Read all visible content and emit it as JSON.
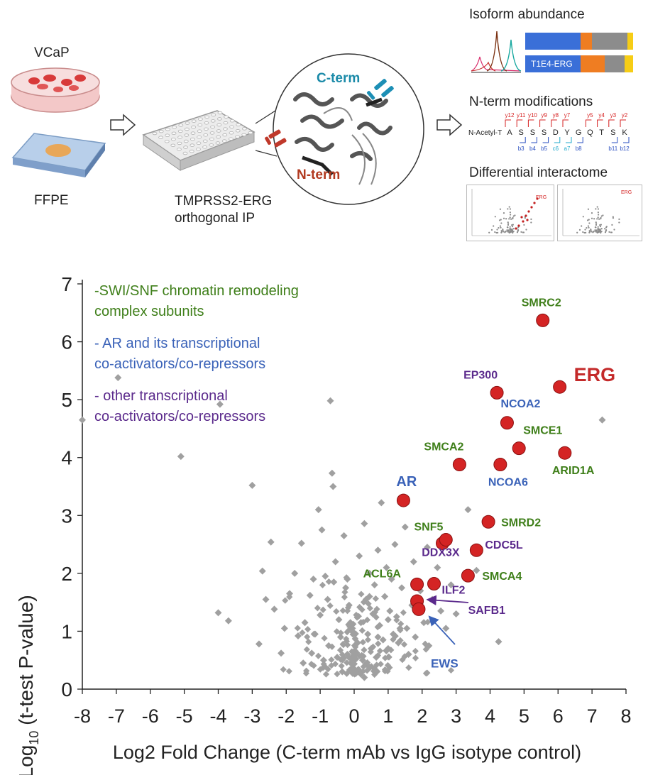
{
  "workflow": {
    "vcap_label": "VCaP",
    "ffpe_label": "FFPE",
    "ip_label_line1": "TMPRSS2-ERG",
    "ip_label_line2": "orthogonal IP",
    "cterm_label": "C-term",
    "nterm_label": "N-term",
    "isoform_title": "Isoform abundance",
    "isoform_bar_label": "T1E4-ERG",
    "nterm_mod_title": "N-term modifications",
    "nterm_prefix": "N-Acetyl-T",
    "sequence": [
      "A",
      "S",
      "S",
      "S",
      "D",
      "Y",
      "G",
      "Q",
      "T",
      "S",
      "K"
    ],
    "y_ions": [
      "y12",
      "y11",
      "y10",
      "y9",
      "y8",
      "y7",
      "y5",
      "y4",
      "y3",
      "y2"
    ],
    "b_ions": [
      "b3",
      "b4",
      "b5",
      "c6",
      "a7",
      "b8",
      "b11",
      "b12"
    ],
    "interactome_title": "Differential interactome",
    "mini_erg_label": "ERG",
    "colors": {
      "bar_blue": "#3a6fd8",
      "bar_orange": "#ef7d22",
      "bar_gray": "#8c8c8c",
      "bar_yellow": "#f6cd16",
      "y_ion_red": "#d62020",
      "b_ion_blue": "#2a4fc0",
      "ca_cyan": "#22aacc"
    }
  },
  "chart_data": {
    "type": "scatter",
    "title": "",
    "xlabel": "Log2 Fold Change (C-term mAb vs IgG isotype control)",
    "ylabel_prefix": "-Log",
    "ylabel_sub": "10",
    "ylabel_suffix": " (t-test P-value)",
    "xlim": [
      -8,
      8
    ],
    "ylim": [
      0,
      7
    ],
    "xticks": [
      "-8",
      "-7",
      "-6",
      "-5",
      "-4",
      "-3",
      "-2",
      "-1",
      "0",
      "1",
      "2",
      "3",
      "4",
      "5",
      "6",
      "7",
      "8"
    ],
    "yticks": [
      "0",
      "1",
      "2",
      "3",
      "4",
      "5",
      "6",
      "7"
    ],
    "legend": [
      {
        "line1": "-SWI/SNF chromatin remodeling",
        "line2": "complex subunits",
        "color": "#3f7f1a"
      },
      {
        "line1": "- AR and its transcriptional",
        "line2": "co-activators/co-repressors",
        "color": "#3a62b8"
      },
      {
        "line1": "- other transcriptional",
        "line2": "co-activators/co-repressors",
        "color": "#5b2a8c"
      }
    ],
    "colors": {
      "background_points": "#a0a0a0",
      "highlight_fill": "#d42424",
      "highlight_stroke": "#8a1010",
      "swisnf": "#3f7f1a",
      "ar": "#3a62b8",
      "other": "#5b2a8c",
      "erg": "#c42a2a"
    },
    "highlighted": [
      {
        "label": "SMRC2",
        "x": 5.55,
        "y": 6.37,
        "group": "swisnf"
      },
      {
        "label": "ERG",
        "x": 6.05,
        "y": 5.22,
        "group": "erg"
      },
      {
        "label": "EP300",
        "x": 4.2,
        "y": 5.12,
        "group": "other"
      },
      {
        "label": "NCOA2",
        "x": 4.5,
        "y": 4.6,
        "group": "ar"
      },
      {
        "label": "SMCE1",
        "x": 4.85,
        "y": 4.16,
        "group": "swisnf"
      },
      {
        "label": "ARID1A",
        "x": 6.2,
        "y": 4.08,
        "group": "swisnf"
      },
      {
        "label": "SMCA2",
        "x": 3.1,
        "y": 3.88,
        "group": "swisnf"
      },
      {
        "label": "NCOA6",
        "x": 4.3,
        "y": 3.88,
        "group": "ar"
      },
      {
        "label": "AR",
        "x": 1.45,
        "y": 3.26,
        "group": "ar"
      },
      {
        "label": "SMRD2",
        "x": 3.95,
        "y": 2.89,
        "group": "swisnf"
      },
      {
        "label": "SNF5",
        "x": 2.6,
        "y": 2.52,
        "group": "swisnf"
      },
      {
        "label": "CDC5L",
        "x": 3.6,
        "y": 2.4,
        "group": "other"
      },
      {
        "label": "DDX3X",
        "x": 2.7,
        "y": 2.58,
        "group": "other"
      },
      {
        "label": "SMCA4",
        "x": 3.35,
        "y": 1.96,
        "group": "swisnf"
      },
      {
        "label": "ACL6A",
        "x": 1.85,
        "y": 1.81,
        "group": "swisnf"
      },
      {
        "label": "ILF2",
        "x": 2.35,
        "y": 1.82,
        "group": "other"
      },
      {
        "label": "SAFB1",
        "x": 1.85,
        "y": 1.52,
        "group": "other"
      },
      {
        "label": "EWS",
        "x": 1.9,
        "y": 1.38,
        "group": "ar"
      }
    ],
    "background": [
      [
        -8.0,
        4.65
      ],
      [
        -6.95,
        5.38
      ],
      [
        -5.1,
        4.02
      ],
      [
        -4.0,
        1.32
      ],
      [
        -3.95,
        4.92
      ],
      [
        -3.7,
        1.18
      ],
      [
        -3.0,
        3.52
      ],
      [
        -2.8,
        0.78
      ],
      [
        -2.7,
        2.04
      ],
      [
        -2.45,
        2.54
      ],
      [
        -2.35,
        1.38
      ],
      [
        -2.15,
        0.62
      ],
      [
        -2.05,
        1.05
      ],
      [
        -1.9,
        1.65
      ],
      [
        -1.65,
        0.92
      ],
      [
        -1.55,
        2.52
      ],
      [
        -1.45,
        1.15
      ],
      [
        -1.3,
        1.62
      ],
      [
        -1.25,
        0.62
      ],
      [
        -1.15,
        0.95
      ],
      [
        -1.05,
        3.1
      ],
      [
        -1.0,
        1.28
      ],
      [
        -0.95,
        2.75
      ],
      [
        -0.85,
        1.95
      ],
      [
        -0.78,
        1.55
      ],
      [
        -0.75,
        0.75
      ],
      [
        -0.7,
        4.98
      ],
      [
        -0.65,
        3.73
      ],
      [
        -0.62,
        3.5
      ],
      [
        -0.55,
        2.2
      ],
      [
        -0.45,
        1.2
      ],
      [
        -0.4,
        0.9
      ],
      [
        -0.3,
        2.65
      ],
      [
        -0.25,
        1.75
      ],
      [
        -0.2,
        0.6
      ],
      [
        -0.15,
        1.45
      ],
      [
        -0.1,
        0.45
      ],
      [
        -0.05,
        1.05
      ],
      [
        0.0,
        0.35
      ],
      [
        0.05,
        0.6
      ],
      [
        0.1,
        0.8
      ],
      [
        0.15,
        0.3
      ],
      [
        0.2,
        1.15
      ],
      [
        0.25,
        0.5
      ],
      [
        0.3,
        2.86
      ],
      [
        0.35,
        1.55
      ],
      [
        0.4,
        0.95
      ],
      [
        0.45,
        2.0
      ],
      [
        0.5,
        0.7
      ],
      [
        0.55,
        1.3
      ],
      [
        0.6,
        1.8
      ],
      [
        0.65,
        0.55
      ],
      [
        0.7,
        2.4
      ],
      [
        0.75,
        1.1
      ],
      [
        0.8,
        3.22
      ],
      [
        0.85,
        0.85
      ],
      [
        0.9,
        1.6
      ],
      [
        0.95,
        2.1
      ],
      [
        1.0,
        0.7
      ],
      [
        1.05,
        1.35
      ],
      [
        1.1,
        1.9
      ],
      [
        1.15,
        0.95
      ],
      [
        1.2,
        2.5
      ],
      [
        1.25,
        1.25
      ],
      [
        1.3,
        0.8
      ],
      [
        1.4,
        1.75
      ],
      [
        1.5,
        2.8
      ],
      [
        1.55,
        1.05
      ],
      [
        1.6,
        0.6
      ],
      [
        1.7,
        1.45
      ],
      [
        1.75,
        2.2
      ],
      [
        1.8,
        0.9
      ],
      [
        1.95,
        1.7
      ],
      [
        2.05,
        1.15
      ],
      [
        2.15,
        2.45
      ],
      [
        2.2,
        0.75
      ],
      [
        2.3,
        1.55
      ],
      [
        2.45,
        2.1
      ],
      [
        2.55,
        1.35
      ],
      [
        2.7,
        1.05
      ],
      [
        2.85,
        1.8
      ],
      [
        3.0,
        1.3
      ],
      [
        3.35,
        3.1
      ],
      [
        3.6,
        2.05
      ],
      [
        4.25,
        0.82
      ],
      [
        7.3,
        4.65
      ],
      [
        -1.5,
        0.45
      ],
      [
        -2.6,
        1.55
      ],
      [
        -0.9,
        0.5
      ],
      [
        0.3,
        0.2
      ],
      [
        -0.35,
        0.3
      ],
      [
        0.6,
        0.35
      ],
      [
        -0.6,
        1.85
      ],
      [
        1.35,
        1.05
      ],
      [
        0.15,
        2.3
      ],
      [
        -1.75,
        2.0
      ],
      [
        -0.5,
        0.55
      ],
      [
        0.45,
        1.6
      ],
      [
        -0.2,
        1.9
      ],
      [
        1.0,
        1.2
      ],
      [
        -1.2,
        1.9
      ],
      [
        0.7,
        0.9
      ]
    ]
  }
}
